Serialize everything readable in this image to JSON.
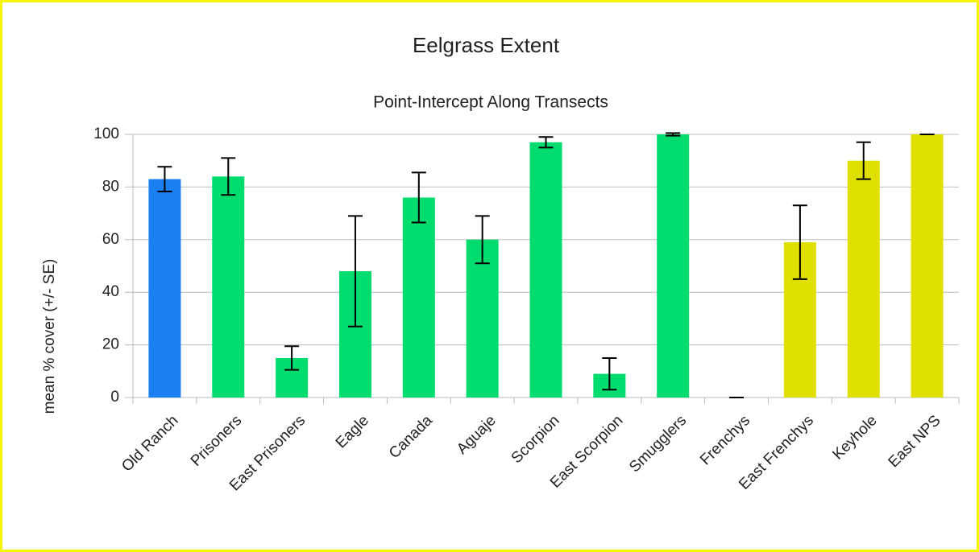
{
  "chart_data": {
    "type": "bar",
    "title": "Eelgrass Extent",
    "subtitle": "Point-Intercept Along Transects",
    "y_label": "mean % cover (+/- SE)",
    "categories": [
      "Old Ranch",
      "Prisoners",
      "East Prisoners",
      "Eagle",
      "Canada",
      "Aguaje",
      "Scorpion",
      "East Scorpion",
      "Smugglers",
      "Frenchys",
      "East Frenchys",
      "Keyhole",
      "East NPS"
    ],
    "values": [
      83,
      84,
      15,
      48,
      76,
      60,
      97,
      9,
      100,
      0,
      59,
      90,
      100
    ],
    "errors": [
      4.7,
      7,
      4.5,
      21,
      9.5,
      9,
      2,
      6,
      0.5,
      0,
      14,
      7,
      0
    ],
    "colors": [
      "#1a80f2",
      "#00dd6e",
      "#00dd6e",
      "#00dd6e",
      "#00dd6e",
      "#00dd6e",
      "#00dd6e",
      "#00dd6e",
      "#00dd6e",
      "#00dd6e",
      "#e0e000",
      "#e0e000",
      "#e0e000"
    ],
    "ylim": [
      0,
      100
    ],
    "yticks": [
      0,
      20,
      40,
      60,
      80,
      100
    ],
    "grid": true
  }
}
